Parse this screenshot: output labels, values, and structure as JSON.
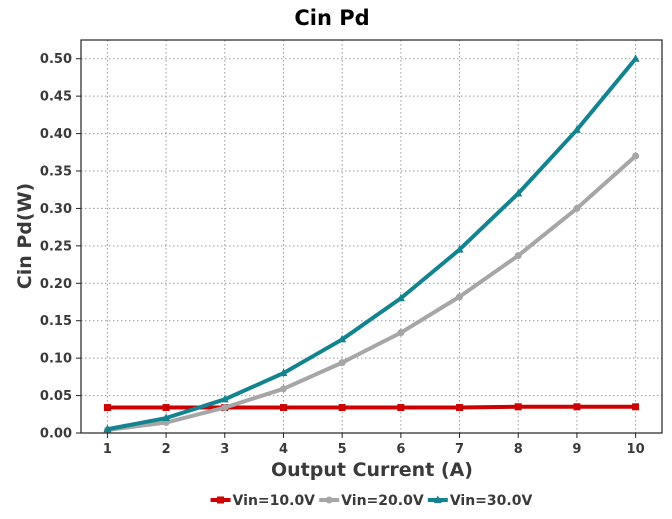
{
  "chart_data": {
    "type": "line",
    "title": "Cin Pd",
    "xlabel": "Output Current (A)",
    "ylabel": "Cin Pd(W)",
    "x": [
      1,
      2,
      3,
      4,
      5,
      6,
      7,
      8,
      9,
      10
    ],
    "x_ticks": [
      "1",
      "2",
      "3",
      "4",
      "5",
      "6",
      "7",
      "8",
      "9",
      "10"
    ],
    "xlim": [
      0.55,
      10.45
    ],
    "ylim": [
      0,
      0.525
    ],
    "y_ticks": [
      "0.00",
      "0.05",
      "0.10",
      "0.15",
      "0.20",
      "0.25",
      "0.30",
      "0.35",
      "0.40",
      "0.45",
      "0.50"
    ],
    "grid": true,
    "legend_position": "bottom",
    "series": [
      {
        "name": "Vin=10.0V",
        "color": "#cc0000",
        "marker": "square",
        "values": [
          0.034,
          0.034,
          0.034,
          0.034,
          0.034,
          0.034,
          0.034,
          0.035,
          0.035,
          0.035
        ]
      },
      {
        "name": "Vin=20.0V",
        "color": "#a6a6a6",
        "marker": "circle",
        "values": [
          0.004,
          0.014,
          0.034,
          0.059,
          0.094,
          0.134,
          0.182,
          0.237,
          0.3,
          0.37
        ]
      },
      {
        "name": "Vin=30.0V",
        "color": "#13838f",
        "marker": "triangle",
        "values": [
          0.005,
          0.02,
          0.045,
          0.08,
          0.125,
          0.18,
          0.245,
          0.32,
          0.405,
          0.5
        ]
      }
    ]
  }
}
